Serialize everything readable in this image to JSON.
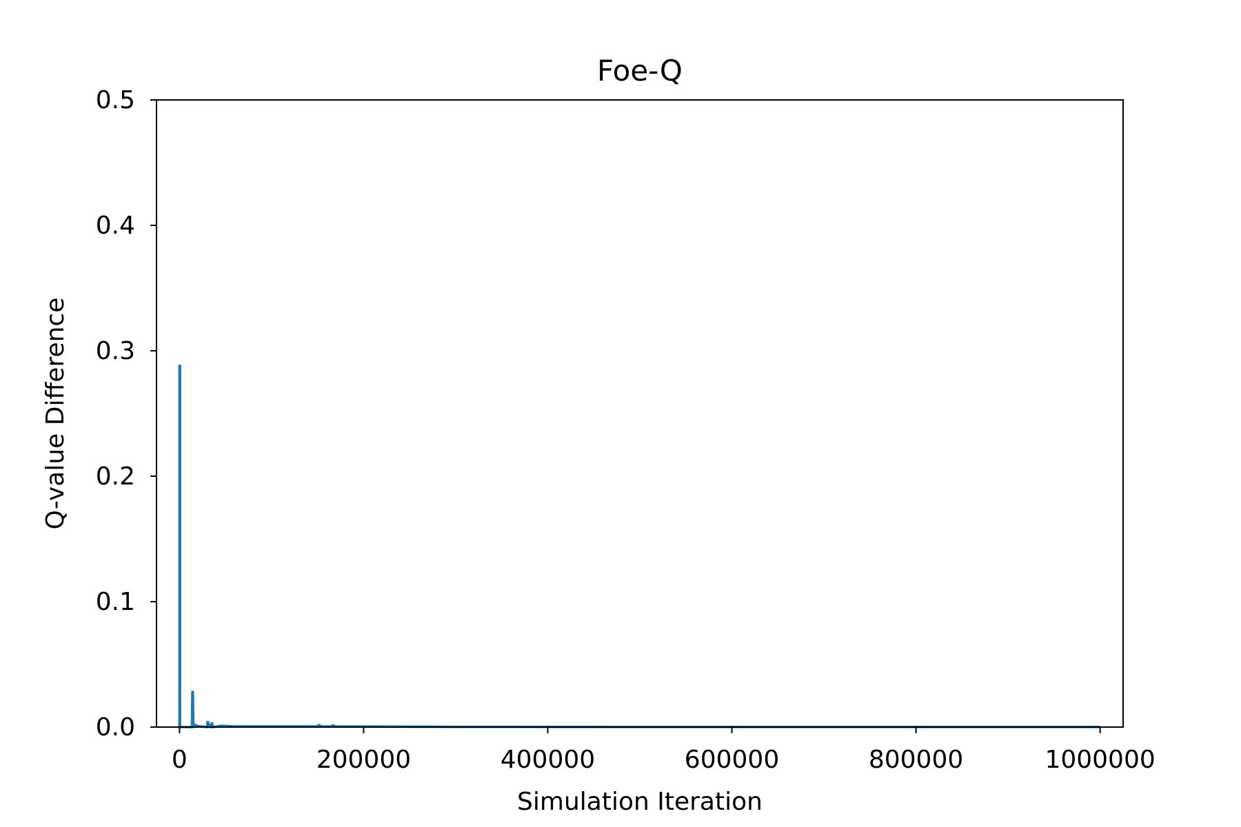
{
  "chart_data": {
    "type": "line",
    "title": "Foe-Q",
    "xlabel": "Simulation Iteration",
    "ylabel": "Q-value Difference",
    "xlim": [
      -25000,
      1025000
    ],
    "ylim": [
      0,
      0.5
    ],
    "xticks": [
      0,
      200000,
      400000,
      600000,
      800000,
      1000000
    ],
    "xtick_labels": [
      "0",
      "200000",
      "400000",
      "600000",
      "800000",
      "1000000"
    ],
    "yticks": [
      0.0,
      0.1,
      0.2,
      0.3,
      0.4,
      0.5
    ],
    "ytick_labels": [
      "0.0",
      "0.1",
      "0.2",
      "0.3",
      "0.4",
      "0.5"
    ],
    "grid": false,
    "legend": "none",
    "series": [
      {
        "color": "#1f77b4",
        "x": [
          0,
          0,
          500,
          500,
          13500,
          14000,
          14500,
          15000,
          16000,
          20000,
          30000,
          30500,
          31000,
          31500,
          32000,
          34500,
          35000,
          35500,
          36000,
          45000,
          60000,
          150000,
          151000,
          152000,
          153000,
          165000,
          166000,
          167000,
          170000,
          300000,
          500000,
          700000,
          900000,
          1000000
        ],
        "y": [
          0.0,
          0.288,
          0.288,
          0.0,
          0.0,
          0.028,
          0.028,
          0.0,
          0.002,
          0.0008,
          0.0,
          0.004,
          0.004,
          0.0,
          0.002,
          0.0,
          0.003,
          0.003,
          0.0,
          0.001,
          0.0005,
          0.0005,
          0.0015,
          0.0015,
          0.0005,
          0.0005,
          0.0012,
          0.0012,
          0.0005,
          0.0002,
          0.0001,
          0.0001,
          0.0001,
          0.0001
        ]
      }
    ]
  }
}
